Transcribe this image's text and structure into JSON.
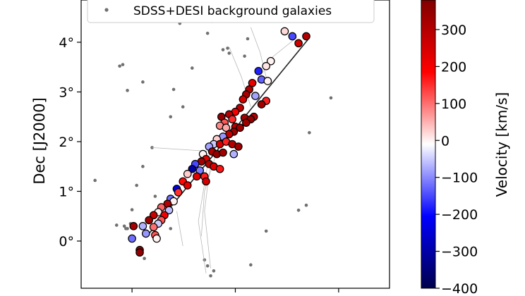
{
  "chart_data": {
    "type": "scatter",
    "ylabel": "Dec [J2000]",
    "xlabel": "",
    "y_ticks": [
      {
        "value": 0,
        "label": "0°"
      },
      {
        "value": 1,
        "label": "1°"
      },
      {
        "value": 2,
        "label": "2°"
      },
      {
        "value": 3,
        "label": "3°"
      },
      {
        "value": 4,
        "label": "4°"
      }
    ],
    "ylim": [
      -0.95,
      4.85
    ],
    "xlim": [
      0,
      1
    ],
    "legend": {
      "placement": "top-left",
      "entries": [
        {
          "label": "SDSS+DESI background galaxies",
          "color": "#707070"
        }
      ]
    },
    "colorbar": {
      "label": "Velocity [km/s]",
      "range": [
        -400,
        380
      ],
      "colormap": "seismic",
      "ticks": [
        {
          "value": 300,
          "label": "300"
        },
        {
          "value": 200,
          "label": "200"
        },
        {
          "value": 100,
          "label": "100"
        },
        {
          "value": 0,
          "label": "0"
        },
        {
          "value": -100,
          "label": "−100"
        },
        {
          "value": -200,
          "label": "−200"
        },
        {
          "value": -300,
          "label": "−300"
        },
        {
          "value": -400,
          "label": "−400"
        }
      ]
    },
    "background_galaxies": [
      [
        0.125,
        3.52
      ],
      [
        0.135,
        3.55
      ],
      [
        0.32,
        4.38
      ],
      [
        0.41,
        4.18
      ],
      [
        0.425,
        4.42
      ],
      [
        0.785,
        4.65
      ],
      [
        0.745,
        4.5
      ],
      [
        0.46,
        3.85
      ],
      [
        0.475,
        3.88
      ],
      [
        0.48,
        3.78
      ],
      [
        0.53,
        3.72
      ],
      [
        0.3,
        3.05
      ],
      [
        0.2,
        3.2
      ],
      [
        0.15,
        3.03
      ],
      [
        0.33,
        2.7
      ],
      [
        0.29,
        2.5
      ],
      [
        0.81,
        2.88
      ],
      [
        0.74,
        2.18
      ],
      [
        0.045,
        1.22
      ],
      [
        0.23,
        1.88
      ],
      [
        0.2,
        1.5
      ],
      [
        0.18,
        1.12
      ],
      [
        0.24,
        0.9
      ],
      [
        0.165,
        0.63
      ],
      [
        0.115,
        0.32
      ],
      [
        0.14,
        0.3
      ],
      [
        0.15,
        0.25
      ],
      [
        0.16,
        0.35
      ],
      [
        0.175,
        0.28
      ],
      [
        0.145,
        0.25
      ],
      [
        0.29,
        0.25
      ],
      [
        0.4,
        -0.38
      ],
      [
        0.41,
        -0.5
      ],
      [
        0.43,
        -0.6
      ],
      [
        0.42,
        -0.7
      ],
      [
        0.55,
        -0.48
      ],
      [
        0.6,
        0.2
      ],
      [
        0.705,
        0.62
      ],
      [
        0.73,
        0.72
      ],
      [
        0.205,
        -0.35
      ],
      [
        0.555,
        4.43
      ],
      [
        0.54,
        4.07
      ],
      [
        0.36,
        3.48
      ]
    ],
    "members": [
      [
        0.73,
        4.12,
        300
      ],
      [
        0.705,
        3.98,
        260
      ],
      [
        0.66,
        4.22,
        20
      ],
      [
        0.685,
        4.12,
        -150
      ],
      [
        0.615,
        3.62,
        0
      ],
      [
        0.6,
        3.52,
        10
      ],
      [
        0.575,
        3.42,
        -180
      ],
      [
        0.585,
        3.25,
        -130
      ],
      [
        0.605,
        3.22,
        0
      ],
      [
        0.555,
        3.18,
        220
      ],
      [
        0.545,
        3.05,
        300
      ],
      [
        0.535,
        2.95,
        320
      ],
      [
        0.525,
        2.85,
        250
      ],
      [
        0.565,
        2.92,
        -80
      ],
      [
        0.515,
        2.68,
        280
      ],
      [
        0.6,
        2.82,
        160
      ],
      [
        0.585,
        2.75,
        330
      ],
      [
        0.5,
        2.6,
        200
      ],
      [
        0.48,
        2.55,
        300
      ],
      [
        0.455,
        2.5,
        350
      ],
      [
        0.49,
        2.45,
        150
      ],
      [
        0.465,
        2.38,
        120
      ],
      [
        0.45,
        2.32,
        80
      ],
      [
        0.47,
        2.28,
        60
      ],
      [
        0.5,
        2.3,
        300
      ],
      [
        0.53,
        2.48,
        330
      ],
      [
        0.56,
        2.5,
        300
      ],
      [
        0.55,
        2.45,
        350
      ],
      [
        0.535,
        2.38,
        330
      ],
      [
        0.515,
        2.28,
        330
      ],
      [
        0.495,
        2.2,
        330
      ],
      [
        0.48,
        2.15,
        280
      ],
      [
        0.46,
        2.1,
        -90
      ],
      [
        0.44,
        2.05,
        30
      ],
      [
        0.43,
        1.95,
        -50
      ],
      [
        0.415,
        1.9,
        -80
      ],
      [
        0.45,
        1.95,
        250
      ],
      [
        0.47,
        2.0,
        160
      ],
      [
        0.49,
        1.95,
        300
      ],
      [
        0.51,
        1.9,
        330
      ],
      [
        0.425,
        1.8,
        310
      ],
      [
        0.44,
        1.75,
        350
      ],
      [
        0.46,
        1.78,
        330
      ],
      [
        0.495,
        1.75,
        -70
      ],
      [
        0.395,
        1.75,
        0
      ],
      [
        0.405,
        1.65,
        230
      ],
      [
        0.39,
        1.6,
        330
      ],
      [
        0.415,
        1.55,
        300
      ],
      [
        0.43,
        1.5,
        240
      ],
      [
        0.45,
        1.45,
        170
      ],
      [
        0.37,
        1.55,
        -150
      ],
      [
        0.36,
        1.45,
        -300
      ],
      [
        0.385,
        1.42,
        -110
      ],
      [
        0.345,
        1.35,
        30
      ],
      [
        0.375,
        1.3,
        230
      ],
      [
        0.4,
        1.3,
        160
      ],
      [
        0.405,
        1.2,
        250
      ],
      [
        0.33,
        1.2,
        180
      ],
      [
        0.345,
        1.12,
        220
      ],
      [
        0.31,
        1.05,
        -220
      ],
      [
        0.315,
        0.98,
        150
      ],
      [
        0.29,
        0.85,
        -120
      ],
      [
        0.3,
        0.8,
        0
      ],
      [
        0.28,
        0.75,
        300
      ],
      [
        0.26,
        0.68,
        110
      ],
      [
        0.285,
        0.62,
        -60
      ],
      [
        0.25,
        0.58,
        0
      ],
      [
        0.27,
        0.52,
        200
      ],
      [
        0.235,
        0.52,
        270
      ],
      [
        0.26,
        0.42,
        120
      ],
      [
        0.22,
        0.42,
        330
      ],
      [
        0.25,
        0.35,
        -50
      ],
      [
        0.235,
        0.28,
        100
      ],
      [
        0.2,
        0.3,
        -70
      ],
      [
        0.17,
        0.3,
        320
      ],
      [
        0.21,
        0.15,
        -90
      ],
      [
        0.24,
        0.12,
        120
      ],
      [
        0.245,
        0.05,
        0
      ],
      [
        0.165,
        0.05,
        -120
      ],
      [
        0.19,
        -0.18,
        330
      ],
      [
        0.19,
        -0.23,
        350
      ]
    ],
    "fit_line": [
      [
        0.22,
        0.15
      ],
      [
        0.735,
        4.05
      ]
    ]
  }
}
